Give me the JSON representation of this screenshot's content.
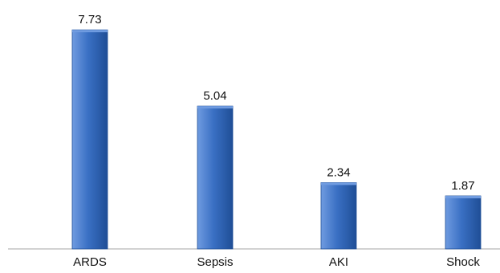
{
  "chart_data": {
    "type": "bar",
    "categories": [
      "ARDS",
      "Sepsis",
      "AKI",
      "Shock"
    ],
    "values": [
      7.73,
      5.04,
      2.34,
      1.87
    ],
    "data_labels": [
      "7.73",
      "5.04",
      "2.34",
      "1.87"
    ],
    "title": "",
    "xlabel": "",
    "ylabel": "",
    "ylim": [
      0,
      8.5
    ],
    "grid": false,
    "legend": "none",
    "colors": {
      "bar_light": "#6f9be0",
      "bar_main": "#3a70c4",
      "bar_dark": "#1f4e96",
      "axis": "#a6a6a6"
    }
  }
}
